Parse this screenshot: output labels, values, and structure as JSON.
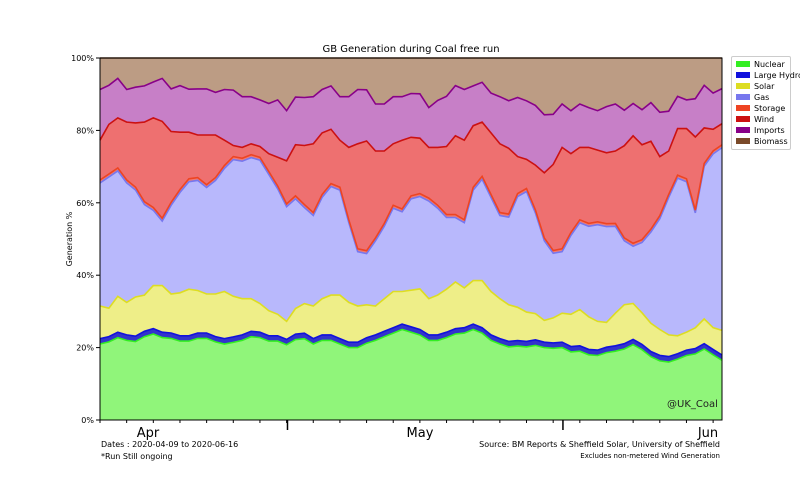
{
  "chart_data": {
    "type": "area",
    "title": "GB Generation during Coal free run",
    "xlabel": "",
    "ylabel": "Generation %",
    "x_start": "2020-04-09",
    "x_end": "2020-06-16",
    "x_tick_labels": [
      "Apr",
      "May",
      "Jun"
    ],
    "ylim": [
      0,
      100
    ],
    "y_ticks": [
      "0%",
      "20%",
      "40%",
      "60%",
      "80%",
      "100%"
    ],
    "series": [
      {
        "name": "Nuclear",
        "color": "#33ee22",
        "fill": "#90f57a",
        "values": [
          21,
          22,
          23,
          22,
          22,
          23,
          24,
          23,
          23,
          22,
          22,
          23,
          23,
          22,
          21,
          21,
          22,
          23,
          23,
          22,
          22,
          21,
          22,
          22,
          21,
          22,
          22,
          21,
          20,
          20,
          21,
          22,
          23,
          24,
          25,
          24,
          23,
          22,
          22,
          23,
          24,
          24,
          25,
          24,
          22,
          21,
          20,
          20,
          20,
          20,
          20,
          20,
          20,
          19,
          19,
          18,
          18,
          19,
          19,
          20,
          21,
          20,
          18,
          16,
          16,
          17,
          18,
          19,
          20,
          18,
          17
        ]
      },
      {
        "name": "Large Hydro",
        "color": "#1111dd",
        "fill": "#3333cc",
        "values": [
          1.5,
          1.5,
          1.5,
          1.5,
          1.5,
          1.5,
          1.5,
          1.5,
          1.5,
          1.5,
          1.5,
          1.5,
          1.5,
          1.5,
          1.5,
          1.5,
          1.5,
          1.5,
          1.5,
          1.5,
          1.5,
          1.5,
          1.5,
          1.5,
          1.5,
          1.5,
          1.5,
          1.5,
          1.5,
          1.5,
          1.5,
          1.5,
          1.5,
          1.5,
          1.5,
          1.5,
          1.5,
          1.5,
          1.5,
          1.5,
          1.5,
          1.5,
          1.5,
          1.5,
          1.5,
          1.5,
          1.5,
          1.5,
          1.5,
          1.5,
          1.5,
          1.5,
          1.5,
          1.5,
          1.5,
          1.5,
          1.5,
          1.5,
          1.5,
          1.5,
          1.5,
          1.5,
          1.5,
          1.5,
          1.5,
          1.5,
          1.5,
          1.5,
          1.5,
          1.5,
          1.5
        ]
      },
      {
        "name": "Solar",
        "color": "#dddd22",
        "fill": "#eeee88",
        "values": [
          9,
          8,
          10,
          9,
          11,
          10,
          12,
          13,
          11,
          12,
          13,
          12,
          11,
          12,
          13,
          11,
          10,
          9,
          8,
          7,
          6,
          5,
          7,
          8,
          9,
          10,
          11,
          12,
          11,
          10,
          9,
          8,
          9,
          10,
          9,
          10,
          11,
          10,
          11,
          12,
          13,
          11,
          12,
          13,
          12,
          11,
          10,
          9,
          8,
          7,
          6,
          7,
          8,
          9,
          10,
          9,
          8,
          7,
          9,
          11,
          10,
          9,
          8,
          7,
          6,
          5,
          5,
          6,
          7,
          6,
          7
        ]
      },
      {
        "name": "Gas",
        "color": "#7777ee",
        "fill": "#b8b8fc",
        "values": [
          34,
          37,
          35,
          33,
          30,
          25,
          21,
          18,
          25,
          28,
          30,
          31,
          30,
          32,
          34,
          37,
          38,
          39,
          40,
          38,
          35,
          32,
          30,
          26,
          25,
          28,
          30,
          29,
          22,
          15,
          14,
          18,
          20,
          23,
          22,
          25,
          25,
          27,
          24,
          20,
          18,
          18,
          25,
          28,
          26,
          23,
          24,
          30,
          33,
          27,
          22,
          18,
          17,
          22,
          24,
          25,
          27,
          27,
          24,
          18,
          16,
          20,
          26,
          30,
          38,
          44,
          42,
          33,
          43,
          48,
          52
        ]
      },
      {
        "name": "Storage",
        "color": "#ee4422",
        "fill": "#ef7b74",
        "values": [
          0.8,
          0.8,
          0.8,
          0.8,
          0.8,
          0.8,
          0.8,
          0.8,
          0.8,
          0.8,
          0.8,
          0.8,
          0.8,
          0.8,
          0.8,
          0.8,
          0.8,
          0.8,
          0.8,
          0.8,
          0.8,
          0.8,
          0.8,
          0.8,
          0.8,
          0.8,
          0.8,
          0.8,
          0.8,
          0.8,
          0.8,
          0.8,
          0.8,
          0.8,
          0.8,
          0.8,
          0.8,
          0.8,
          0.8,
          0.8,
          0.8,
          0.8,
          0.8,
          0.8,
          0.8,
          0.8,
          0.8,
          0.8,
          0.8,
          0.8,
          0.8,
          0.8,
          0.8,
          0.8,
          0.8,
          0.8,
          0.8,
          0.8,
          0.8,
          0.8,
          0.8,
          0.8,
          0.8,
          0.8,
          0.8,
          0.8,
          0.8,
          0.8,
          0.8,
          0.8,
          0.8
        ]
      },
      {
        "name": "Wind",
        "color": "#cc1111",
        "fill": "#ee7070",
        "values": [
          11,
          14,
          14,
          16,
          18,
          22,
          25,
          27,
          20,
          16,
          13,
          12,
          14,
          12,
          7,
          3,
          3,
          3,
          3,
          5,
          8,
          12,
          14,
          16,
          19,
          17,
          15,
          13,
          20,
          29,
          30,
          24,
          20,
          17,
          19,
          16,
          15,
          14,
          16,
          19,
          22,
          22,
          17,
          15,
          17,
          19,
          18,
          10,
          8,
          12,
          18,
          24,
          28,
          22,
          20,
          21,
          20,
          20,
          20,
          26,
          30,
          27,
          25,
          16,
          12,
          13,
          14,
          21,
          10,
          6,
          6
        ]
      },
      {
        "name": "Imports",
        "color": "#880088",
        "fill": "#c77fc7",
        "values": [
          14,
          11,
          11,
          9,
          10,
          10,
          10,
          12,
          12,
          13,
          12,
          13,
          13,
          12,
          14,
          15,
          14,
          13,
          13,
          14,
          16,
          14,
          13,
          13,
          13,
          12,
          12,
          12,
          14,
          15,
          14,
          13,
          13,
          13,
          12,
          12,
          12,
          11,
          13,
          14,
          14,
          14,
          11,
          11,
          11,
          13,
          13,
          16,
          16,
          16,
          16,
          14,
          12,
          12,
          12,
          11,
          11,
          13,
          13,
          10,
          9,
          10,
          11,
          12,
          11,
          9,
          8,
          11,
          12,
          10,
          10
        ]
      },
      {
        "name": "Biomass",
        "color": "#7a4a2a",
        "fill": "#bc9c84",
        "values": [
          8.7,
          7.7,
          5.7,
          8.7,
          8.2,
          7.7,
          6.7,
          5.7,
          8.7,
          7.7,
          8.7,
          8.7,
          8.7,
          9.7,
          8.7,
          8.7,
          10.7,
          10.7,
          11.7,
          12.7,
          11.7,
          14.7,
          10.7,
          10.7,
          10.7,
          8.7,
          7.7,
          10.7,
          10.7,
          8.7,
          8.7,
          12.7,
          12.7,
          10.7,
          10.7,
          9.7,
          9.7,
          13.7,
          11.7,
          10.7,
          7.7,
          8.7,
          7.7,
          6.7,
          9.7,
          10.7,
          11.7,
          10.7,
          11.7,
          12.7,
          15.7,
          15.7,
          12.7,
          14.7,
          12.7,
          13.7,
          14.7,
          13.7,
          12.7,
          14.7,
          12.7,
          14.7,
          12.7,
          14.7,
          14.7,
          10.7,
          11.7,
          11.7,
          7.7,
          9.7,
          8.7
        ]
      }
    ],
    "legend_position": "outside-right",
    "grid": false,
    "annotation": "@UK_Coal"
  },
  "footer": {
    "dates": "Dates : 2020-04-09 to 2020-06-16",
    "note": "*Run Still ongoing",
    "source": "Source: BM Reports & Sheffield Solar, University of Sheffield",
    "excludes": "Excludes non-metered Wind Generation"
  }
}
